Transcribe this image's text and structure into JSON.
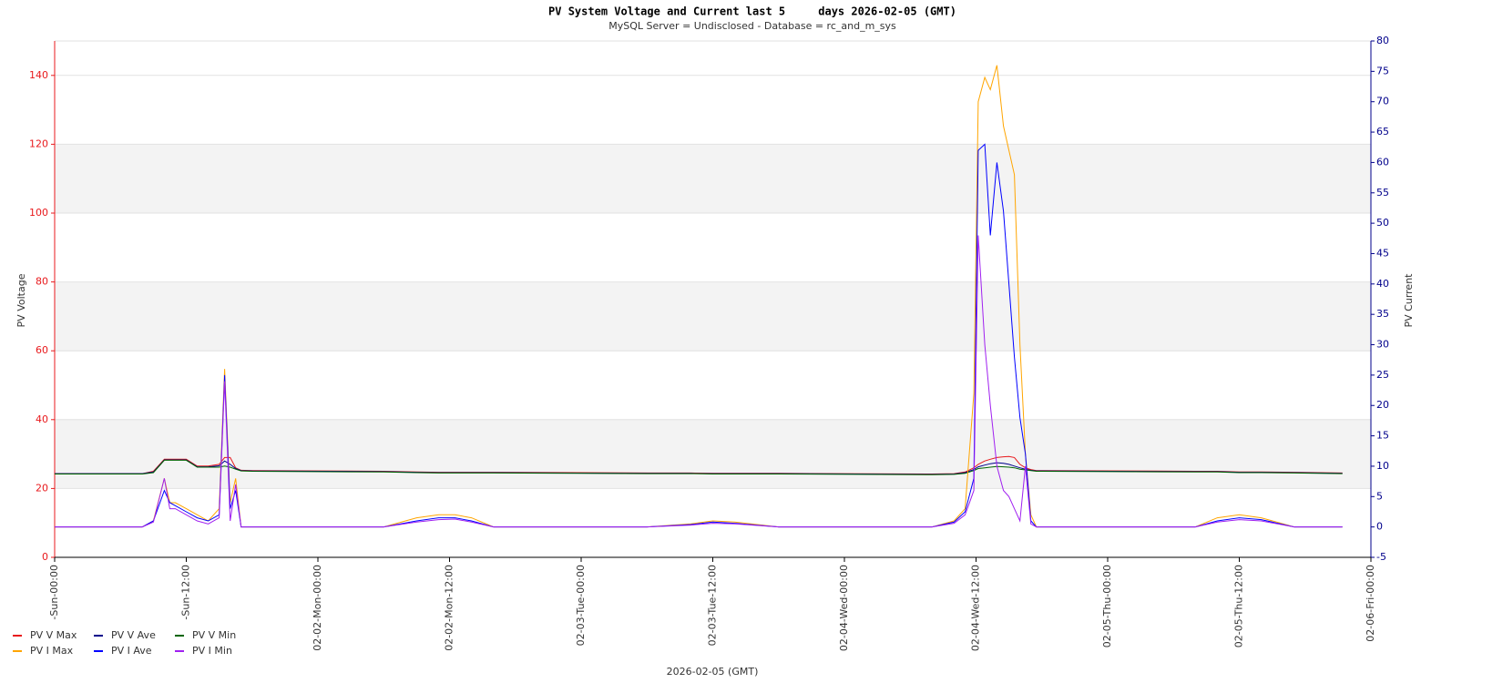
{
  "chart_data": {
    "type": "line",
    "title": "PV System Voltage and Current last 5     days 2026-02-05 (GMT)",
    "subtitle": "MySQL Server = Undisclosed - Database = rc_and_m_sys",
    "x_label": "2026-02-05 (GMT)",
    "y_label": "PV Voltage",
    "y2_label": "PV Current",
    "grid": true,
    "ylim": [
      0,
      150
    ],
    "yticks": [
      0,
      20,
      40,
      60,
      80,
      100,
      120,
      140
    ],
    "y2lim": [
      -5,
      80
    ],
    "y2ticks": [
      -5,
      0,
      5,
      10,
      15,
      20,
      25,
      30,
      35,
      40,
      45,
      50,
      55,
      60,
      65,
      70,
      75,
      80
    ],
    "xlim": [
      0,
      120
    ],
    "xticks": [
      {
        "value": 0,
        "label": "-Sun-00:00"
      },
      {
        "value": 12,
        "label": "-Sun-12:00"
      },
      {
        "value": 24,
        "label": "02-02-Mon-00:00"
      },
      {
        "value": 36,
        "label": "02-02-Mon-12:00"
      },
      {
        "value": 48,
        "label": "02-03-Tue-00:00"
      },
      {
        "value": 60,
        "label": "02-03-Tue-12:00"
      },
      {
        "value": 72,
        "label": "02-04-Wed-00:00"
      },
      {
        "value": 84,
        "label": "02-04-Wed-12:00"
      },
      {
        "value": 96,
        "label": "02-05-Thu-00:00"
      },
      {
        "value": 108,
        "label": "02-05-Thu-12:00"
      },
      {
        "value": 120,
        "label": "02-06-Fri-00:00"
      }
    ],
    "x": [
      0,
      8,
      9,
      10,
      10.5,
      11,
      12,
      13,
      14,
      15,
      15.5,
      16,
      16.5,
      17,
      18,
      30,
      33,
      35,
      36.5,
      38,
      40,
      54,
      58,
      60,
      62,
      66,
      80,
      82,
      83,
      83.8,
      84.2,
      84.8,
      85.3,
      85.9,
      86.5,
      87,
      87.5,
      88,
      88.5,
      89,
      89.5,
      104,
      106,
      108,
      110,
      113,
      117.4
    ],
    "series": [
      {
        "name": "PV V Max",
        "color": "#e8191c",
        "axis": "y",
        "values": [
          24.3,
          24.3,
          25,
          28.5,
          28.5,
          28.5,
          28.5,
          26.5,
          26.5,
          27,
          29,
          29,
          26,
          25.3,
          25.2,
          25,
          24.8,
          24.7,
          24.7,
          24.7,
          24.7,
          24.5,
          24.5,
          24.4,
          24.4,
          24.4,
          24.2,
          24.3,
          24.8,
          26,
          27,
          28,
          28.5,
          29,
          29.2,
          29.3,
          29,
          27,
          26,
          25.5,
          25.2,
          25,
          25,
          24.8,
          24.8,
          24.7,
          24.5
        ]
      },
      {
        "name": "PV V Ave",
        "color": "#00008b",
        "axis": "y",
        "values": [
          24.3,
          24.3,
          24.8,
          28.3,
          28.3,
          28.3,
          28.3,
          26.3,
          26.3,
          26.6,
          28,
          27,
          25.8,
          25.2,
          25.1,
          24.9,
          24.7,
          24.6,
          24.6,
          24.6,
          24.6,
          24.4,
          24.4,
          24.3,
          24.3,
          24.3,
          24.1,
          24.2,
          24.6,
          25.5,
          26.3,
          26.8,
          27.2,
          27.5,
          27.3,
          27,
          26.5,
          26,
          25.6,
          25.3,
          25.1,
          24.9,
          24.9,
          24.7,
          24.7,
          24.6,
          24.4
        ]
      },
      {
        "name": "PV V Min",
        "color": "#006400",
        "axis": "y",
        "values": [
          24.2,
          24.2,
          24.6,
          28.2,
          28.2,
          28.2,
          28.2,
          26.2,
          26.2,
          26.2,
          26.5,
          26.2,
          25.6,
          25.1,
          25,
          24.8,
          24.6,
          24.5,
          24.5,
          24.5,
          24.5,
          24.3,
          24.3,
          24.2,
          24.2,
          24.2,
          24,
          24.1,
          24.4,
          25.2,
          25.8,
          26,
          26.2,
          26.4,
          26.3,
          26.2,
          26,
          25.6,
          25.4,
          25.2,
          25,
          24.8,
          24.8,
          24.6,
          24.6,
          24.5,
          24.3
        ]
      },
      {
        "name": "PV I Max",
        "color": "#ffa500",
        "axis": "y2",
        "values": [
          0,
          0,
          1,
          8,
          4,
          4,
          3,
          2,
          1,
          3,
          26,
          4,
          8,
          0,
          0,
          0,
          1.5,
          2,
          2,
          1.5,
          0,
          0,
          0.5,
          1,
          0.8,
          0,
          0,
          1,
          3,
          22,
          70,
          74,
          72,
          76,
          66,
          62,
          58,
          30,
          12,
          2,
          0,
          0,
          1.5,
          2,
          1.5,
          0,
          0
        ]
      },
      {
        "name": "PV I Ave",
        "color": "#0000ff",
        "axis": "y2",
        "values": [
          0,
          0,
          1,
          6,
          4,
          3.5,
          2.5,
          1.5,
          1,
          2,
          25,
          3,
          6,
          0,
          0,
          0,
          1,
          1.5,
          1.5,
          1,
          0,
          0,
          0.4,
          0.8,
          0.6,
          0,
          0,
          0.8,
          2.5,
          8,
          62,
          63,
          48,
          60,
          52,
          40,
          28,
          18,
          12,
          1,
          0,
          0,
          1,
          1.5,
          1.2,
          0,
          0
        ]
      },
      {
        "name": "PV I Min",
        "color": "#a020f0",
        "axis": "y2",
        "values": [
          0,
          0,
          0.8,
          8,
          3,
          3,
          2,
          1,
          0.5,
          1.5,
          24,
          1,
          7,
          0,
          0,
          0,
          0.8,
          1.2,
          1.3,
          0.8,
          0,
          0,
          0.3,
          0.6,
          0.5,
          0,
          0,
          0.6,
          2,
          6,
          48,
          30,
          20,
          10,
          6,
          5,
          3,
          1,
          10,
          0.5,
          0,
          0,
          0.8,
          1.2,
          1,
          0,
          0
        ]
      }
    ]
  }
}
